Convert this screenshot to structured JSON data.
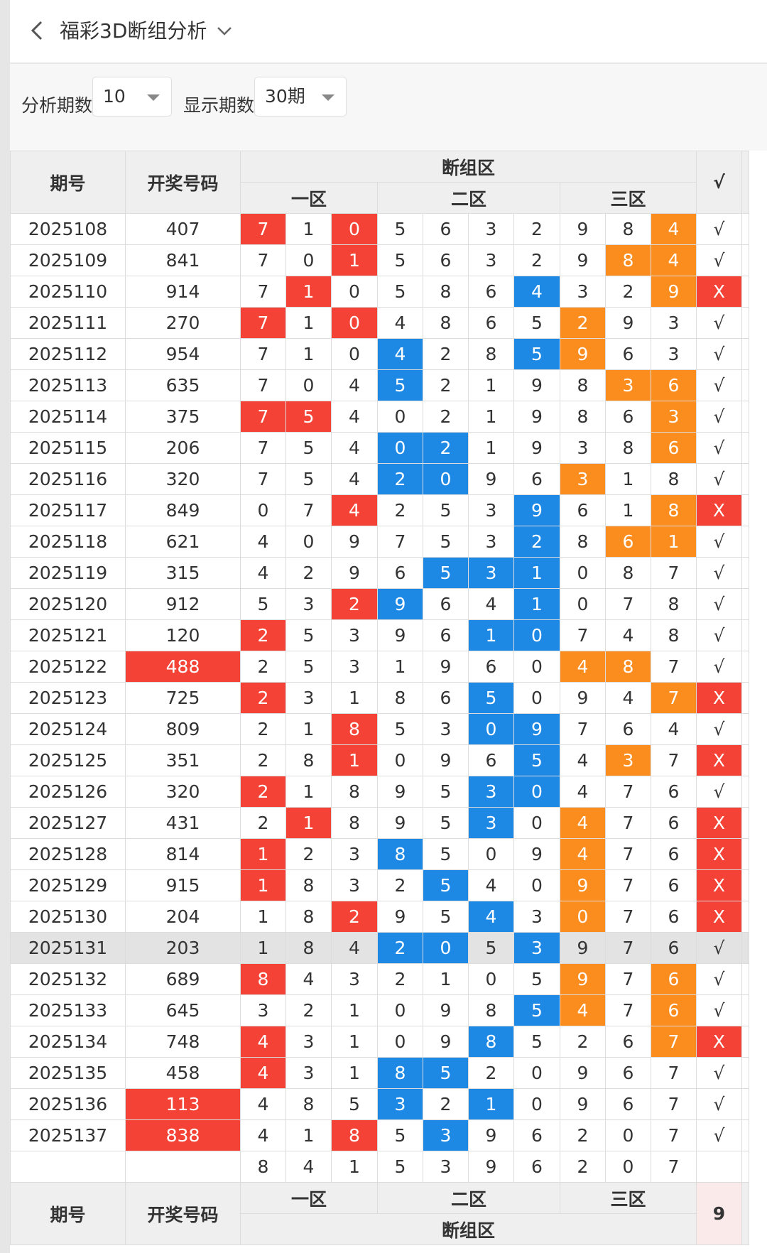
{
  "header": {
    "title": "福彩3D断组分析"
  },
  "filters": {
    "periods_label": "分析期数",
    "periods_value": "10",
    "display_label": "显示期数",
    "display_value": "30期"
  },
  "table": {
    "head": {
      "period": "期号",
      "number": "开奖号码",
      "group": "断组区",
      "zone1": "一区",
      "zone2": "二区",
      "zone3": "三区",
      "check": "√"
    },
    "rows": [
      {
        "period": "2025108",
        "number": "407",
        "number_hl": false,
        "digits": [
          "7",
          "1",
          "0",
          "5",
          "6",
          "3",
          "2",
          "9",
          "8",
          "4"
        ],
        "marks": [
          "r",
          "",
          "r",
          "",
          "",
          "",
          "",
          "",
          "",
          "o"
        ],
        "result": "√",
        "hl": false
      },
      {
        "period": "2025109",
        "number": "841",
        "number_hl": false,
        "digits": [
          "7",
          "0",
          "1",
          "5",
          "6",
          "3",
          "2",
          "9",
          "8",
          "4"
        ],
        "marks": [
          "",
          "",
          "r",
          "",
          "",
          "",
          "",
          "",
          "o",
          "o"
        ],
        "result": "√",
        "hl": false
      },
      {
        "period": "2025110",
        "number": "914",
        "number_hl": false,
        "digits": [
          "7",
          "1",
          "0",
          "5",
          "8",
          "6",
          "4",
          "3",
          "2",
          "9"
        ],
        "marks": [
          "",
          "r",
          "",
          "",
          "",
          "",
          "b",
          "",
          "",
          "o"
        ],
        "result": "X",
        "hl": false
      },
      {
        "period": "2025111",
        "number": "270",
        "number_hl": false,
        "digits": [
          "7",
          "1",
          "0",
          "4",
          "8",
          "6",
          "5",
          "2",
          "9",
          "3"
        ],
        "marks": [
          "r",
          "",
          "r",
          "",
          "",
          "",
          "",
          "o",
          "",
          ""
        ],
        "result": "√",
        "hl": false
      },
      {
        "period": "2025112",
        "number": "954",
        "number_hl": false,
        "digits": [
          "7",
          "1",
          "0",
          "4",
          "2",
          "8",
          "5",
          "9",
          "6",
          "3"
        ],
        "marks": [
          "",
          "",
          "",
          "b",
          "",
          "",
          "b",
          "o",
          "",
          ""
        ],
        "result": "√",
        "hl": false
      },
      {
        "period": "2025113",
        "number": "635",
        "number_hl": false,
        "digits": [
          "7",
          "0",
          "4",
          "5",
          "2",
          "1",
          "9",
          "8",
          "3",
          "6"
        ],
        "marks": [
          "",
          "",
          "",
          "b",
          "",
          "",
          "",
          "",
          "o",
          "o"
        ],
        "result": "√",
        "hl": false
      },
      {
        "period": "2025114",
        "number": "375",
        "number_hl": false,
        "digits": [
          "7",
          "5",
          "4",
          "0",
          "2",
          "1",
          "9",
          "8",
          "6",
          "3"
        ],
        "marks": [
          "r",
          "r",
          "",
          "",
          "",
          "",
          "",
          "",
          "",
          "o"
        ],
        "result": "√",
        "hl": false
      },
      {
        "period": "2025115",
        "number": "206",
        "number_hl": false,
        "digits": [
          "7",
          "5",
          "4",
          "0",
          "2",
          "1",
          "9",
          "3",
          "8",
          "6"
        ],
        "marks": [
          "",
          "",
          "",
          "b",
          "b",
          "",
          "",
          "",
          "",
          "o"
        ],
        "result": "√",
        "hl": false
      },
      {
        "period": "2025116",
        "number": "320",
        "number_hl": false,
        "digits": [
          "7",
          "5",
          "4",
          "2",
          "0",
          "9",
          "6",
          "3",
          "1",
          "8"
        ],
        "marks": [
          "",
          "",
          "",
          "b",
          "b",
          "",
          "",
          "o",
          "",
          ""
        ],
        "result": "√",
        "hl": false
      },
      {
        "period": "2025117",
        "number": "849",
        "number_hl": false,
        "digits": [
          "0",
          "7",
          "4",
          "2",
          "5",
          "3",
          "9",
          "6",
          "1",
          "8"
        ],
        "marks": [
          "",
          "",
          "r",
          "",
          "",
          "",
          "b",
          "",
          "",
          "o"
        ],
        "result": "X",
        "hl": false
      },
      {
        "period": "2025118",
        "number": "621",
        "number_hl": false,
        "digits": [
          "4",
          "0",
          "9",
          "7",
          "5",
          "3",
          "2",
          "8",
          "6",
          "1"
        ],
        "marks": [
          "",
          "",
          "",
          "",
          "",
          "",
          "b",
          "",
          "o",
          "o"
        ],
        "result": "√",
        "hl": false
      },
      {
        "period": "2025119",
        "number": "315",
        "number_hl": false,
        "digits": [
          "4",
          "2",
          "9",
          "6",
          "5",
          "3",
          "1",
          "0",
          "8",
          "7"
        ],
        "marks": [
          "",
          "",
          "",
          "",
          "b",
          "b",
          "b",
          "",
          "",
          ""
        ],
        "result": "√",
        "hl": false
      },
      {
        "period": "2025120",
        "number": "912",
        "number_hl": false,
        "digits": [
          "5",
          "3",
          "2",
          "9",
          "6",
          "4",
          "1",
          "0",
          "7",
          "8"
        ],
        "marks": [
          "",
          "",
          "r",
          "b",
          "",
          "",
          "b",
          "",
          "",
          ""
        ],
        "result": "√",
        "hl": false
      },
      {
        "period": "2025121",
        "number": "120",
        "number_hl": false,
        "digits": [
          "2",
          "5",
          "3",
          "9",
          "6",
          "1",
          "0",
          "7",
          "4",
          "8"
        ],
        "marks": [
          "r",
          "",
          "",
          "",
          "",
          "b",
          "b",
          "",
          "",
          ""
        ],
        "result": "√",
        "hl": false
      },
      {
        "period": "2025122",
        "number": "488",
        "number_hl": true,
        "digits": [
          "2",
          "5",
          "3",
          "1",
          "9",
          "6",
          "0",
          "4",
          "8",
          "7"
        ],
        "marks": [
          "",
          "",
          "",
          "",
          "",
          "",
          "",
          "o",
          "o",
          ""
        ],
        "result": "√",
        "hl": false
      },
      {
        "period": "2025123",
        "number": "725",
        "number_hl": false,
        "digits": [
          "2",
          "3",
          "1",
          "8",
          "6",
          "5",
          "0",
          "9",
          "4",
          "7"
        ],
        "marks": [
          "r",
          "",
          "",
          "",
          "",
          "b",
          "",
          "",
          "",
          "o"
        ],
        "result": "X",
        "hl": false
      },
      {
        "period": "2025124",
        "number": "809",
        "number_hl": false,
        "digits": [
          "2",
          "1",
          "8",
          "5",
          "3",
          "0",
          "9",
          "7",
          "6",
          "4"
        ],
        "marks": [
          "",
          "",
          "r",
          "",
          "",
          "b",
          "b",
          "",
          "",
          ""
        ],
        "result": "√",
        "hl": false
      },
      {
        "period": "2025125",
        "number": "351",
        "number_hl": false,
        "digits": [
          "2",
          "8",
          "1",
          "0",
          "9",
          "6",
          "5",
          "4",
          "3",
          "7"
        ],
        "marks": [
          "",
          "",
          "r",
          "",
          "",
          "",
          "b",
          "",
          "o",
          ""
        ],
        "result": "X",
        "hl": false
      },
      {
        "period": "2025126",
        "number": "320",
        "number_hl": false,
        "digits": [
          "2",
          "1",
          "8",
          "9",
          "5",
          "3",
          "0",
          "4",
          "7",
          "6"
        ],
        "marks": [
          "r",
          "",
          "",
          "",
          "",
          "b",
          "b",
          "",
          "",
          ""
        ],
        "result": "√",
        "hl": false
      },
      {
        "period": "2025127",
        "number": "431",
        "number_hl": false,
        "digits": [
          "2",
          "1",
          "8",
          "9",
          "5",
          "3",
          "0",
          "4",
          "7",
          "6"
        ],
        "marks": [
          "",
          "r",
          "",
          "",
          "",
          "b",
          "",
          "o",
          "",
          ""
        ],
        "result": "X",
        "hl": false
      },
      {
        "period": "2025128",
        "number": "814",
        "number_hl": false,
        "digits": [
          "1",
          "2",
          "3",
          "8",
          "5",
          "0",
          "9",
          "4",
          "7",
          "6"
        ],
        "marks": [
          "r",
          "",
          "",
          "b",
          "",
          "",
          "",
          "o",
          "",
          ""
        ],
        "result": "X",
        "hl": false
      },
      {
        "period": "2025129",
        "number": "915",
        "number_hl": false,
        "digits": [
          "1",
          "8",
          "3",
          "2",
          "5",
          "4",
          "0",
          "9",
          "7",
          "6"
        ],
        "marks": [
          "r",
          "",
          "",
          "",
          "b",
          "",
          "",
          "o",
          "",
          ""
        ],
        "result": "X",
        "hl": false
      },
      {
        "period": "2025130",
        "number": "204",
        "number_hl": false,
        "digits": [
          "1",
          "8",
          "2",
          "9",
          "5",
          "4",
          "3",
          "0",
          "7",
          "6"
        ],
        "marks": [
          "",
          "",
          "r",
          "",
          "",
          "b",
          "",
          "o",
          "",
          ""
        ],
        "result": "X",
        "hl": false
      },
      {
        "period": "2025131",
        "number": "203",
        "number_hl": false,
        "digits": [
          "1",
          "8",
          "4",
          "2",
          "0",
          "5",
          "3",
          "9",
          "7",
          "6"
        ],
        "marks": [
          "",
          "",
          "",
          "b",
          "b",
          "",
          "b",
          "",
          "",
          ""
        ],
        "result": "√",
        "hl": true
      },
      {
        "period": "2025132",
        "number": "689",
        "number_hl": false,
        "digits": [
          "8",
          "4",
          "3",
          "2",
          "1",
          "0",
          "5",
          "9",
          "7",
          "6"
        ],
        "marks": [
          "r",
          "",
          "",
          "",
          "",
          "",
          "",
          "o",
          "",
          "o"
        ],
        "result": "√",
        "hl": false
      },
      {
        "period": "2025133",
        "number": "645",
        "number_hl": false,
        "digits": [
          "3",
          "2",
          "1",
          "0",
          "9",
          "8",
          "5",
          "4",
          "7",
          "6"
        ],
        "marks": [
          "",
          "",
          "",
          "",
          "",
          "",
          "b",
          "o",
          "",
          "o"
        ],
        "result": "√",
        "hl": false
      },
      {
        "period": "2025134",
        "number": "748",
        "number_hl": false,
        "digits": [
          "4",
          "3",
          "1",
          "0",
          "9",
          "8",
          "5",
          "2",
          "6",
          "7"
        ],
        "marks": [
          "r",
          "",
          "",
          "",
          "",
          "b",
          "",
          "",
          "",
          "o"
        ],
        "result": "X",
        "hl": false
      },
      {
        "period": "2025135",
        "number": "458",
        "number_hl": false,
        "digits": [
          "4",
          "3",
          "1",
          "8",
          "5",
          "2",
          "0",
          "9",
          "6",
          "7"
        ],
        "marks": [
          "r",
          "",
          "",
          "b",
          "b",
          "",
          "",
          "",
          "",
          ""
        ],
        "result": "√",
        "hl": false
      },
      {
        "period": "2025136",
        "number": "113",
        "number_hl": true,
        "digits": [
          "4",
          "8",
          "5",
          "3",
          "2",
          "1",
          "0",
          "9",
          "6",
          "7"
        ],
        "marks": [
          "",
          "",
          "",
          "b",
          "",
          "b",
          "",
          "",
          "",
          ""
        ],
        "result": "√",
        "hl": false
      },
      {
        "period": "2025137",
        "number": "838",
        "number_hl": true,
        "digits": [
          "4",
          "1",
          "8",
          "5",
          "3",
          "9",
          "6",
          "2",
          "0",
          "7"
        ],
        "marks": [
          "",
          "",
          "r",
          "",
          "b",
          "",
          "",
          "",
          "",
          ""
        ],
        "result": "√",
        "hl": false
      }
    ],
    "next_row": {
      "digits": [
        "8",
        "4",
        "1",
        "5",
        "3",
        "9",
        "6",
        "2",
        "0",
        "7"
      ]
    },
    "footer": {
      "period": "期号",
      "number": "开奖号码",
      "zone1": "一区",
      "zone2": "二区",
      "zone3": "三区",
      "group": "断组区",
      "fail_count": "9"
    }
  }
}
